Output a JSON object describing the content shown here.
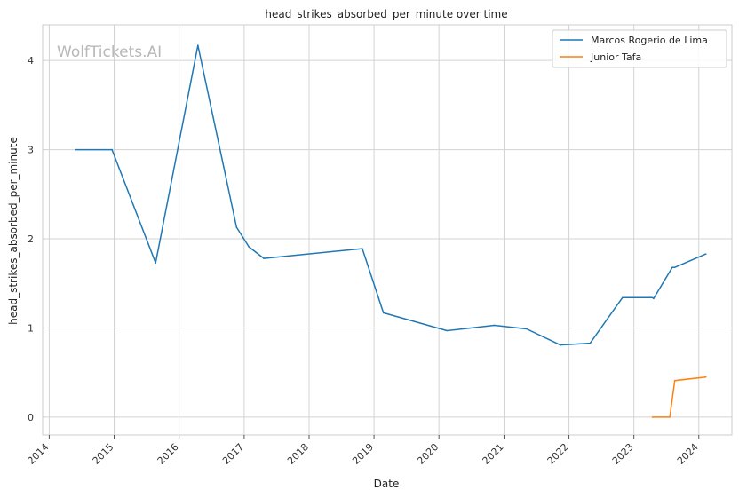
{
  "chart_data": {
    "type": "line",
    "title": "head_strikes_absorbed_per_minute over time",
    "xlabel": "Date",
    "ylabel": "head_strikes_absorbed_per_minute",
    "watermark": "WolfTickets.AI",
    "x_ticks": [
      "2014",
      "2015",
      "2016",
      "2017",
      "2018",
      "2019",
      "2020",
      "2021",
      "2022",
      "2023",
      "2024"
    ],
    "y_ticks": [
      "0",
      "1",
      "2",
      "3",
      "4"
    ],
    "xlim": [
      "2013-11-25",
      "2024-07-05"
    ],
    "ylim": [
      -0.2,
      4.4
    ],
    "grid": true,
    "legend_position": "top-right",
    "series": [
      {
        "name": "Marcos Rogerio de Lima",
        "color": "#1f77b4",
        "x": [
          "2014-06-01",
          "2014-12-20",
          "2015-08-22",
          "2016-04-16",
          "2016-11-19",
          "2017-01-28",
          "2017-04-22",
          "2018-10-27",
          "2019-02-23",
          "2020-02-15",
          "2020-11-07",
          "2021-05-08",
          "2021-11-13",
          "2022-04-30",
          "2022-10-29",
          "2023-04-15",
          "2023-04-22",
          "2023-08-05",
          "2023-08-19",
          "2024-02-10"
        ],
        "values": [
          3.0,
          3.0,
          1.73,
          4.17,
          2.13,
          1.91,
          1.78,
          1.89,
          1.17,
          0.97,
          1.03,
          0.99,
          0.81,
          0.83,
          1.34,
          1.34,
          1.33,
          1.68,
          1.68,
          1.83
        ]
      },
      {
        "name": "Junior Tafa",
        "color": "#ff7f0e",
        "x": [
          "2023-04-15",
          "2023-07-22",
          "2023-08-19",
          "2024-02-10"
        ],
        "values": [
          0.0,
          0.0,
          0.41,
          0.45
        ]
      }
    ]
  }
}
